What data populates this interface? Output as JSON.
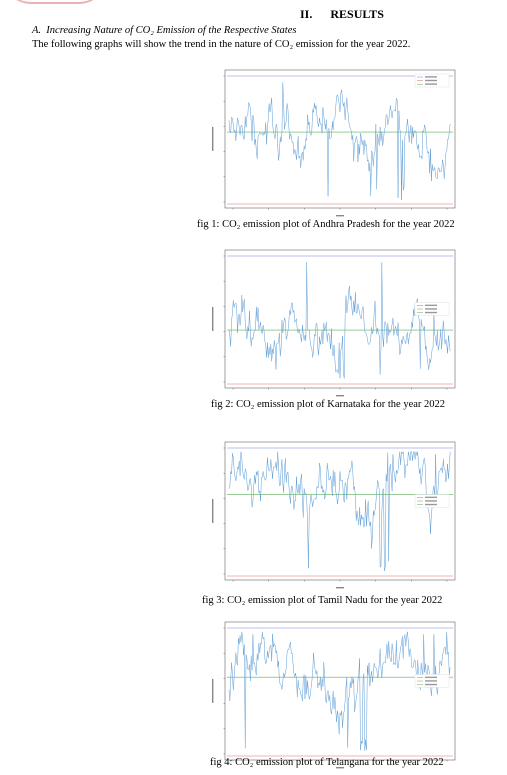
{
  "section": {
    "number": "II.",
    "title": "RESULTS",
    "subsection_prefix": "A.",
    "subsection_title": "Increasing Nature of CO₂ Emission of the Respective States",
    "intro": "The following graphs will show the trend in the nature of CO₂ emission for the year 2022."
  },
  "figures": [
    {
      "caption": "fig 1: CO₂ emission plot of Andhra Pradesh for the year 2022"
    },
    {
      "caption": "fig 2: CO₂ emission plot of Karnataka for the year 2022"
    },
    {
      "caption": "fig 3: CO₂ emission plot of Tamil Nadu for the year 2022"
    },
    {
      "caption": "fig 4: CO₂ emission plot of Telangana for the year 2022"
    }
  ],
  "colors": {
    "series": "#5b9bd5",
    "max_line": "#7b7bd9",
    "min_line": "#e06a6a",
    "avg_line": "#5cae5c"
  },
  "chart_data": [
    {
      "type": "line",
      "seed": 11,
      "avg_level": 0.55,
      "dip_index": 0.78,
      "legend": "top-right"
    },
    {
      "type": "line",
      "seed": 23,
      "avg_level": 0.42,
      "dip_index": 0.5,
      "legend": "right"
    },
    {
      "type": "line",
      "seed": 37,
      "avg_level": 0.62,
      "dip_index": 0.7,
      "legend": "right"
    },
    {
      "type": "line",
      "seed": 51,
      "avg_level": 0.6,
      "dip_index": 0.6,
      "legend": "right"
    }
  ]
}
